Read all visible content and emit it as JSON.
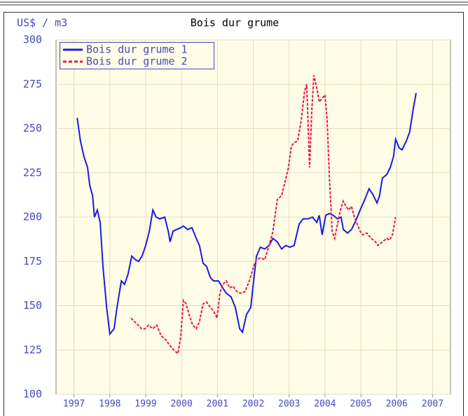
{
  "chart_data": {
    "type": "line",
    "title": "Bois dur grume",
    "ylabel": "US$ / m3",
    "xlim": [
      1997,
      2008
    ],
    "ylim": [
      100,
      300
    ],
    "xticks": [
      {
        "value": 1997.5,
        "label": "1997"
      },
      {
        "value": 1998.5,
        "label": "1998"
      },
      {
        "value": 1999.5,
        "label": "1999"
      },
      {
        "value": 2000.5,
        "label": "2000"
      },
      {
        "value": 2001.5,
        "label": "2001"
      },
      {
        "value": 2002.5,
        "label": "2002"
      },
      {
        "value": 2003.5,
        "label": "2003"
      },
      {
        "value": 2004.5,
        "label": "2004"
      },
      {
        "value": 2005.5,
        "label": "2005"
      },
      {
        "value": 2006.5,
        "label": "2006"
      },
      {
        "value": 2007.5,
        "label": "2007"
      }
    ],
    "yticks": [
      100,
      125,
      150,
      175,
      200,
      225,
      250,
      275,
      300
    ],
    "grid": true,
    "legend": "top-left",
    "series": [
      {
        "name": "Bois dur grume 1",
        "color": "#1a1ae6",
        "dash": false,
        "x": [
          1997.59,
          1997.68,
          1997.78,
          1997.88,
          1997.94,
          1998.02,
          1998.07,
          1998.15,
          1998.23,
          1998.31,
          1998.41,
          1998.5,
          1998.62,
          1998.7,
          1998.82,
          1998.91,
          1999.01,
          1999.11,
          1999.21,
          1999.3,
          1999.4,
          1999.5,
          1999.6,
          1999.7,
          1999.79,
          1999.89,
          2000.03,
          2000.13,
          2000.18,
          2000.26,
          2000.36,
          2000.48,
          2000.55,
          2000.67,
          2000.79,
          2000.91,
          2001.0,
          2001.1,
          2001.2,
          2001.3,
          2001.39,
          2001.53,
          2001.65,
          2001.75,
          2001.88,
          2002.0,
          2002.12,
          2002.2,
          2002.31,
          2002.43,
          2002.51,
          2002.59,
          2002.7,
          2002.82,
          2002.94,
          2003.05,
          2003.17,
          2003.29,
          2003.41,
          2003.52,
          2003.64,
          2003.78,
          2003.89,
          2004.03,
          2004.15,
          2004.27,
          2004.34,
          2004.42,
          2004.52,
          2004.62,
          2004.73,
          2004.85,
          2004.95,
          2005.01,
          2005.13,
          2005.24,
          2005.36,
          2005.48,
          2005.59,
          2005.73,
          2005.83,
          2005.95,
          2006.02,
          2006.1,
          2006.22,
          2006.32,
          2006.41,
          2006.47,
          2006.57,
          2006.65,
          2006.77,
          2006.86,
          2006.96,
          2007.04
        ],
        "values": [
          256,
          243,
          234,
          228,
          218,
          212,
          200,
          204,
          197,
          172,
          149,
          134,
          137,
          149,
          164,
          162,
          168,
          178,
          176,
          175,
          178,
          184,
          192,
          204,
          200,
          199,
          200,
          192,
          186,
          192,
          193,
          194,
          195,
          193,
          194,
          188,
          184,
          174,
          172,
          166,
          164,
          164,
          160,
          157,
          155,
          149,
          137,
          135,
          145,
          149,
          164,
          178,
          183,
          182,
          184,
          188,
          186,
          182,
          184,
          183,
          184,
          196,
          199,
          199,
          200,
          197,
          201,
          190,
          201,
          202,
          201,
          199,
          200,
          193,
          191,
          193,
          198,
          204,
          209,
          216,
          213,
          208,
          212,
          222,
          224,
          228,
          234,
          244,
          239,
          238,
          243,
          248,
          261,
          270
        ]
      },
      {
        "name": "Bois dur grume 2",
        "color": "#e6194b",
        "dash": true,
        "x": [
          1999.09,
          1999.19,
          1999.29,
          1999.38,
          1999.48,
          1999.58,
          1999.7,
          1999.81,
          1999.93,
          2000.05,
          2000.16,
          2000.28,
          2000.4,
          2000.48,
          2000.55,
          2000.63,
          2000.71,
          2000.81,
          2000.91,
          2001.0,
          2001.1,
          2001.2,
          2001.3,
          2001.39,
          2001.49,
          2001.57,
          2001.65,
          2001.75,
          2001.84,
          2001.94,
          2002.04,
          2002.16,
          2002.27,
          2002.39,
          2002.51,
          2002.59,
          2002.7,
          2002.82,
          2002.94,
          2003.05,
          2003.17,
          2003.29,
          2003.41,
          2003.48,
          2003.56,
          2003.64,
          2003.74,
          2003.84,
          2003.93,
          2003.99,
          2004.07,
          2004.13,
          2004.19,
          2004.27,
          2004.34,
          2004.42,
          2004.5,
          2004.56,
          2004.62,
          2004.7,
          2004.77,
          2004.85,
          2004.93,
          2005.01,
          2005.09,
          2005.16,
          2005.24,
          2005.32,
          2005.4,
          2005.48,
          2005.55,
          2005.67,
          2005.79,
          2005.91,
          2005.98,
          2006.1,
          2006.22,
          2006.3,
          2006.38,
          2006.47
        ],
        "values": [
          143,
          141,
          139,
          137,
          137,
          139,
          137,
          139,
          133,
          131,
          128,
          125,
          123,
          133,
          153,
          151,
          145,
          139,
          137,
          141,
          151,
          152,
          149,
          147,
          143,
          157,
          162,
          164,
          160,
          161,
          158,
          157,
          158,
          164,
          172,
          176,
          177,
          176,
          184,
          192,
          210,
          212,
          222,
          228,
          240,
          242,
          243,
          255,
          271,
          275,
          228,
          259,
          280,
          273,
          265,
          267,
          269,
          255,
          224,
          192,
          188,
          196,
          204,
          209,
          206,
          204,
          206,
          200,
          196,
          192,
          190,
          191,
          188,
          186,
          184,
          186,
          188,
          187,
          190,
          200
        ]
      }
    ]
  }
}
